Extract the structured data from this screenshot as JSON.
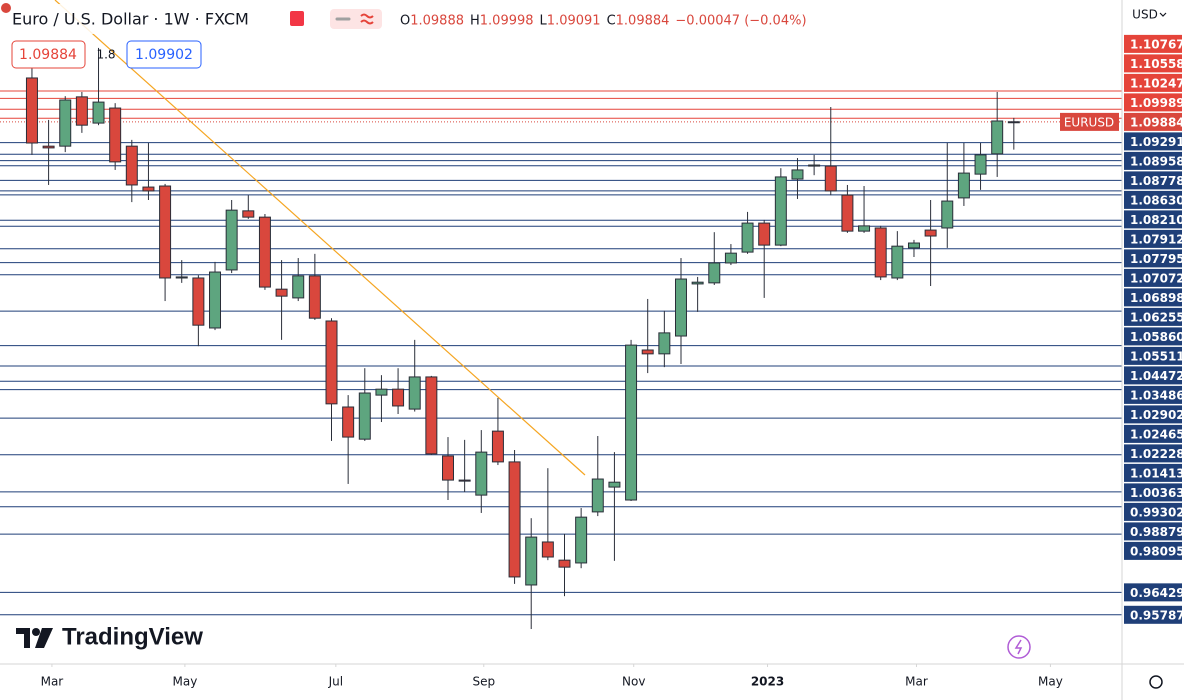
{
  "chart_data": {
    "type": "candlestick",
    "title": "Euro / U.S. Dollar · 1W · FXCM",
    "currency": "USD",
    "symbol": "EURUSD",
    "ohlc_labels": [
      "O",
      "H",
      "L",
      "C"
    ],
    "change": "−0.00047 (−0.04%)",
    "spread": 1.8,
    "ask": 1.09902,
    "watermark": "TradingView",
    "open": [
      1.1114,
      1.0919,
      1.0919,
      1.106,
      1.0985,
      1.1028,
      1.0919,
      1.0802,
      1.0805,
      1.0542,
      1.0542,
      1.0399,
      1.0565,
      1.0734,
      1.0716,
      1.051,
      1.0485,
      1.0548,
      1.0419,
      1.0173,
      1.0081,
      1.0207,
      1.0224,
      1.0167,
      1.0259,
      1.0033,
      0.9964,
      0.9921,
      1.0104,
      1.0016,
      0.9664,
      0.9787,
      0.9735,
      0.9727,
      0.9873,
      0.9944,
      0.9907,
      1.0336,
      1.0325,
      1.0376,
      1.0525,
      1.0528,
      1.0585,
      1.0616,
      1.0699,
      1.0636,
      1.0825,
      1.0862,
      1.0862,
      1.0779,
      1.0676,
      1.0685,
      1.0542,
      1.0628,
      1.0679,
      1.0685,
      1.0771,
      1.0839,
      1.0897,
      1.09888
    ],
    "high": [
      1.116,
      1.0994,
      1.1062,
      1.1074,
      1.12,
      1.1042,
      1.0937,
      1.0928,
      1.0811,
      1.0593,
      1.055,
      1.0588,
      1.0765,
      1.0779,
      1.0725,
      1.0593,
      1.0599,
      1.0611,
      1.0427,
      1.0207,
      1.0284,
      1.0264,
      1.0284,
      1.0365,
      1.0262,
      1.0087,
      1.0079,
      1.0107,
      1.0199,
      1.005,
      0.9855,
      0.9998,
      0.981,
      0.9884,
      1.009,
      1.0044,
      1.0365,
      1.0482,
      1.0448,
      1.0599,
      1.0545,
      1.0673,
      1.0639,
      1.0731,
      1.0708,
      1.0856,
      1.0885,
      1.0894,
      1.1031,
      1.0808,
      1.0805,
      1.0691,
      1.0676,
      1.0651,
      1.0765,
      1.0928,
      1.0928,
      1.0928,
      1.1074,
      1.09998
    ],
    "low": [
      1.0894,
      1.0808,
      1.0902,
      1.0957,
      1.0979,
      1.0851,
      1.0759,
      1.0765,
      1.0476,
      1.0528,
      1.0347,
      1.0393,
      1.0556,
      1.0711,
      1.0508,
      1.0365,
      1.0476,
      1.0422,
      1.0076,
      0.9953,
      1.0076,
      1.013,
      1.0153,
      1.016,
      1.0036,
      0.9907,
      0.993,
      0.987,
      1.0007,
      0.9667,
      0.9538,
      0.9735,
      0.9632,
      0.9712,
      0.9861,
      0.9733,
      0.9904,
      1.027,
      1.0287,
      1.0296,
      1.0445,
      1.0522,
      1.0579,
      1.0611,
      1.0485,
      1.0633,
      1.0768,
      1.0836,
      1.0779,
      1.0671,
      1.0671,
      1.0536,
      1.0536,
      1.0602,
      1.0519,
      1.0628,
      1.0748,
      1.0794,
      1.0831,
      1.09091
    ],
    "close": [
      1.0928,
      1.0914,
      1.1051,
      1.0979,
      1.1045,
      1.0874,
      1.0808,
      1.0791,
      1.0542,
      1.0545,
      1.0407,
      1.0559,
      1.0736,
      1.0716,
      1.0516,
      1.049,
      1.0548,
      1.0427,
      1.0182,
      1.0087,
      1.0213,
      1.0224,
      1.0176,
      1.0259,
      1.0039,
      0.9964,
      0.9961,
      1.0044,
      1.0016,
      0.9687,
      0.9801,
      0.9744,
      0.9715,
      0.9858,
      0.9967,
      0.9958,
      1.035,
      1.0325,
      1.0385,
      1.0539,
      1.053,
      1.0585,
      1.0613,
      1.0699,
      1.0636,
      1.0831,
      1.0851,
      1.0865,
      1.0791,
      1.0676,
      1.0691,
      1.0545,
      1.0633,
      1.0642,
      1.0662,
      1.0762,
      1.0842,
      1.0894,
      1.0991,
      1.09884
    ],
    "up_color": "#5ea57f",
    "down_color": "#d9473d",
    "line_color_above": "#e5443a",
    "line_color_below": "#1f3f78",
    "trend_color": "#f5a623",
    "xlim": [
      -1.92,
      65.5
    ],
    "ylim": [
      0.9438,
      1.1337
    ],
    "xticks": [
      {
        "value": 1.2,
        "label": "Mar"
      },
      {
        "value": 9.19,
        "label": "May"
      },
      {
        "value": 18.26,
        "label": "Jul"
      },
      {
        "value": 27.15,
        "label": "Sep"
      },
      {
        "value": 36.16,
        "label": "Nov"
      },
      {
        "value": 44.2,
        "label": "2023"
      },
      {
        "value": 53.15,
        "label": "Mar"
      },
      {
        "value": 61.2,
        "label": "May"
      }
    ],
    "yticks": [
      1.10767,
      1.10558,
      1.10247,
      1.09989,
      1.09291,
      1.08958,
      1.08778,
      {
        "value": 1.0863,
        "label": "1.08630"
      },
      {
        "value": 1.0821,
        "label": "1.08210"
      },
      1.07912,
      1.07795,
      1.07072,
      1.06898,
      1.06255,
      {
        "value": 1.0586,
        "label": "1.05860"
      },
      1.05511,
      1.04472,
      1.03486,
      1.02902,
      1.02465,
      1.02228,
      1.01413,
      1.00363,
      0.99302,
      0.98879,
      0.98095,
      0.96429,
      0.95787
    ]
  }
}
